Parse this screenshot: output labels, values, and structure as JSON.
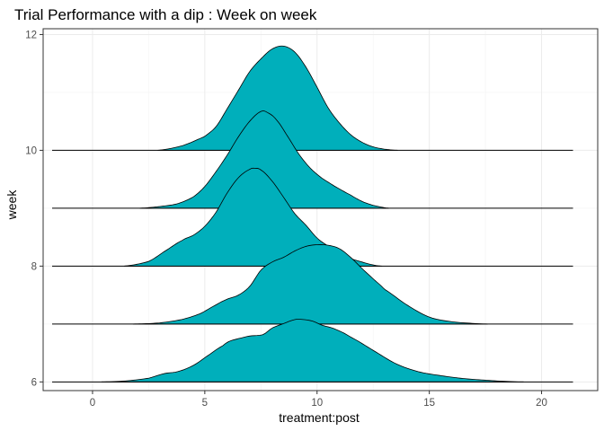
{
  "chart_data": {
    "type": "ridgeline",
    "title": "Trial Performance with a dip : Week on week",
    "xlabel": "treatment:post",
    "ylabel": "week",
    "xlim": [
      -2.2,
      22.5
    ],
    "ylim": [
      5.85,
      12.1
    ],
    "x_ticks": [
      0,
      5,
      10,
      15,
      20
    ],
    "y_ticks": [
      6,
      8,
      10,
      12
    ],
    "grid": true,
    "fill_color": "#00AFBB",
    "line_color": "#000000",
    "x_range": [
      -1.8,
      21.4
    ],
    "series": [
      {
        "week": 6,
        "peak": 7.08,
        "support": [
          0.4,
          19.2
        ],
        "x": [
          0.4,
          1.5,
          2.5,
          3.2,
          3.8,
          4.5,
          5.2,
          5.8,
          6.1,
          6.5,
          7.0,
          7.6,
          8.0,
          8.5,
          9.0,
          9.3,
          9.8,
          10.2,
          10.8,
          11.5,
          12.5,
          13.5,
          14.5,
          15.5,
          16.5,
          17.5,
          18.5,
          19.2
        ],
        "density": [
          0.0,
          0.018,
          0.065,
          0.145,
          0.18,
          0.29,
          0.475,
          0.63,
          0.71,
          0.755,
          0.8,
          0.825,
          0.94,
          1.015,
          1.085,
          1.09,
          1.06,
          0.99,
          0.92,
          0.78,
          0.55,
          0.32,
          0.18,
          0.11,
          0.06,
          0.03,
          0.008,
          0.0
        ]
      },
      {
        "week": 7,
        "peak": 8.37,
        "support": [
          1.8,
          17.6
        ],
        "x": [
          1.8,
          3.0,
          4.0,
          4.8,
          5.5,
          6.0,
          6.5,
          7.0,
          7.5,
          8.0,
          8.5,
          9.0,
          9.5,
          10.0,
          10.5,
          11.0,
          11.5,
          12.0,
          12.5,
          13.0,
          14.0,
          15.0,
          16.0,
          17.0,
          17.6
        ],
        "density": [
          0.0,
          0.02,
          0.08,
          0.18,
          0.33,
          0.43,
          0.5,
          0.65,
          0.93,
          1.07,
          1.15,
          1.26,
          1.34,
          1.37,
          1.36,
          1.3,
          1.15,
          0.96,
          0.78,
          0.6,
          0.33,
          0.12,
          0.04,
          0.01,
          0.0
        ]
      },
      {
        "week": 8,
        "peak": 9.69,
        "support": [
          1.4,
          12.9
        ],
        "x": [
          1.4,
          2.5,
          3.2,
          4.0,
          4.5,
          5.0,
          5.5,
          6.0,
          6.5,
          7.0,
          7.2,
          7.5,
          8.0,
          8.5,
          9.0,
          9.5,
          10.0,
          10.5,
          11.0,
          11.5,
          12.0,
          12.5,
          12.9
        ],
        "density": [
          0.0,
          0.08,
          0.25,
          0.44,
          0.53,
          0.68,
          0.92,
          1.25,
          1.51,
          1.65,
          1.67,
          1.64,
          1.45,
          1.18,
          0.9,
          0.7,
          0.48,
          0.34,
          0.22,
          0.13,
          0.07,
          0.02,
          0.0
        ]
      },
      {
        "week": 9,
        "peak": 10.67,
        "support": [
          2.1,
          13.2
        ],
        "x": [
          2.1,
          3.0,
          3.8,
          4.5,
          5.0,
          5.5,
          6.0,
          6.5,
          7.0,
          7.5,
          7.8,
          8.2,
          8.7,
          9.2,
          9.7,
          10.2,
          10.8,
          11.5,
          12.0,
          12.5,
          13.2
        ],
        "density": [
          0.0,
          0.03,
          0.08,
          0.2,
          0.38,
          0.64,
          0.93,
          1.25,
          1.52,
          1.69,
          1.67,
          1.54,
          1.25,
          0.94,
          0.7,
          0.53,
          0.38,
          0.23,
          0.12,
          0.05,
          0.0
        ]
      },
      {
        "week": 10,
        "peak": 11.8,
        "support": [
          2.9,
          13.6
        ],
        "x": [
          2.9,
          4.0,
          5.0,
          5.5,
          6.0,
          6.5,
          7.0,
          7.5,
          8.0,
          8.5,
          9.0,
          9.5,
          10.0,
          10.5,
          11.0,
          11.5,
          12.0,
          12.5,
          13.0,
          13.6
        ],
        "density": [
          0.0,
          0.08,
          0.24,
          0.41,
          0.72,
          1.04,
          1.36,
          1.58,
          1.75,
          1.8,
          1.7,
          1.44,
          1.09,
          0.73,
          0.47,
          0.27,
          0.14,
          0.06,
          0.02,
          0.0
        ]
      }
    ]
  }
}
